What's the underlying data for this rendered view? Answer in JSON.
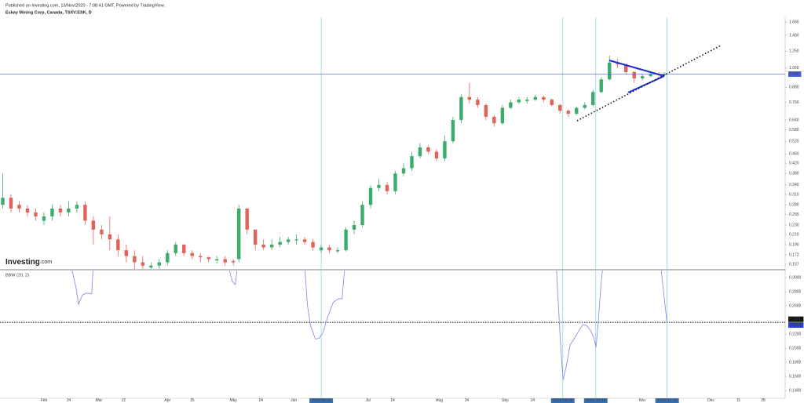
{
  "header": {
    "published": "Published on Investing.com, 13/Nov/2020 - 7:08:41 GMT, Powered by TradingView.",
    "symbol": "Eskay Mining Corp, Canada, TSXV:ESK, D",
    "watermark": "Investing",
    "watermark_suffix": ".com"
  },
  "chart_data": [
    {
      "type": "candlestick",
      "log_scale": true,
      "up_color": "#3dab6b",
      "down_color": "#e0625a",
      "xlim": [
        0,
        286
      ],
      "ylim": [
        0.15,
        1.74
      ],
      "xticks": [
        {
          "value": 16,
          "label": "Feb"
        },
        {
          "value": 25,
          "label": "14"
        },
        {
          "value": 36,
          "label": "Mar"
        },
        {
          "value": 45,
          "label": "12"
        },
        {
          "value": 61,
          "label": "Apr"
        },
        {
          "value": 70,
          "label": "15"
        },
        {
          "value": 85,
          "label": "May"
        },
        {
          "value": 95,
          "label": "14"
        },
        {
          "value": 107,
          "label": "Jun"
        },
        {
          "value": 117,
          "label": "2020-06-11",
          "highlight": true
        },
        {
          "value": 134,
          "label": "Jul"
        },
        {
          "value": 143,
          "label": "14"
        },
        {
          "value": 160,
          "label": "Aug"
        },
        {
          "value": 170,
          "label": "14"
        },
        {
          "value": 184,
          "label": "Sep"
        },
        {
          "value": 194,
          "label": "14"
        },
        {
          "value": 205,
          "label": "2020-09-28",
          "highlight": true
        },
        {
          "value": 217,
          "label": "2020-10-13",
          "highlight": true
        },
        {
          "value": 234,
          "label": "Nov"
        },
        {
          "value": 243,
          "label": "2020-11-12",
          "highlight": true
        },
        {
          "value": 259,
          "label": "Dec"
        },
        {
          "value": 269,
          "label": "11"
        },
        {
          "value": 278,
          "label": "28"
        }
      ],
      "yticks": [
        {
          "value": 1.66,
          "label": "1.660"
        },
        {
          "value": 1.46,
          "label": "1.460"
        },
        {
          "value": 1.25,
          "label": "1.250"
        },
        {
          "value": 1.06,
          "label": "1.060"
        },
        {
          "value": 0.88,
          "label": "0.880"
        },
        {
          "value": 0.76,
          "label": "0.760"
        },
        {
          "value": 0.64,
          "label": "0.640"
        },
        {
          "value": 0.58,
          "label": "0.580"
        },
        {
          "value": 0.52,
          "label": "0.520"
        },
        {
          "value": 0.46,
          "label": "0.460"
        },
        {
          "value": 0.42,
          "label": "0.420"
        },
        {
          "value": 0.38,
          "label": "0.380"
        },
        {
          "value": 0.34,
          "label": "0.340"
        },
        {
          "value": 0.31,
          "label": "0.310"
        },
        {
          "value": 0.28,
          "label": "0.280"
        },
        {
          "value": 0.255,
          "label": "0.255"
        },
        {
          "value": 0.23,
          "label": "0.230"
        },
        {
          "value": 0.21,
          "label": "0.210"
        },
        {
          "value": 0.19,
          "label": "0.190"
        },
        {
          "value": 0.172,
          "label": "0.172"
        },
        {
          "value": 0.157,
          "label": "0.157"
        }
      ],
      "price_line": {
        "value": 1.0,
        "label": "1.000",
        "color": "#4a5fd6"
      },
      "candles": {
        "x": [
          1,
          4,
          7,
          10,
          13,
          16,
          19,
          22,
          25,
          28,
          31,
          34,
          37,
          40,
          43,
          46,
          49,
          52,
          55,
          58,
          61,
          64,
          67,
          70,
          73,
          76,
          79,
          82,
          85,
          87,
          90,
          93,
          96,
          99,
          102,
          105,
          108,
          111,
          114,
          117,
          120,
          123,
          126,
          129,
          132,
          135,
          138,
          141,
          144,
          147,
          150,
          153,
          156,
          159,
          162,
          165,
          168,
          171,
          174,
          177,
          180,
          183,
          186,
          189,
          192,
          195,
          198,
          201,
          204,
          207,
          210,
          213,
          216,
          219,
          222,
          225,
          228,
          231,
          234,
          237,
          240,
          242
        ],
        "open": [
          0.28,
          0.3,
          0.28,
          0.27,
          0.26,
          0.24,
          0.25,
          0.27,
          0.26,
          0.27,
          0.28,
          0.24,
          0.22,
          0.21,
          0.2,
          0.18,
          0.17,
          0.16,
          0.152,
          0.155,
          0.16,
          0.175,
          0.19,
          0.175,
          0.17,
          0.168,
          0.163,
          0.165,
          0.162,
          0.165,
          0.27,
          0.22,
          0.19,
          0.185,
          0.19,
          0.195,
          0.198,
          0.2,
          0.195,
          0.18,
          0.185,
          0.178,
          0.18,
          0.22,
          0.23,
          0.28,
          0.33,
          0.34,
          0.32,
          0.38,
          0.4,
          0.45,
          0.49,
          0.47,
          0.44,
          0.52,
          0.64,
          0.8,
          0.78,
          0.74,
          0.66,
          0.62,
          0.72,
          0.76,
          0.77,
          0.78,
          0.8,
          0.78,
          0.74,
          0.7,
          0.68,
          0.72,
          0.74,
          0.84,
          0.95,
          1.12,
          1.1,
          1.02,
          0.96,
          0.98,
          1.0,
          0.99
        ],
        "high": [
          0.38,
          0.31,
          0.29,
          0.28,
          0.27,
          0.26,
          0.28,
          0.28,
          0.29,
          0.29,
          0.29,
          0.25,
          0.23,
          0.25,
          0.21,
          0.19,
          0.18,
          0.17,
          0.16,
          0.165,
          0.18,
          0.195,
          0.19,
          0.18,
          0.175,
          0.17,
          0.17,
          0.17,
          0.165,
          0.28,
          0.27,
          0.22,
          0.2,
          0.2,
          0.205,
          0.205,
          0.21,
          0.205,
          0.2,
          0.19,
          0.19,
          0.185,
          0.225,
          0.24,
          0.29,
          0.34,
          0.36,
          0.35,
          0.39,
          0.42,
          0.47,
          0.51,
          0.5,
          0.48,
          0.55,
          0.66,
          0.82,
          0.92,
          0.8,
          0.75,
          0.67,
          0.74,
          0.78,
          0.8,
          0.8,
          0.82,
          0.81,
          0.79,
          0.75,
          0.71,
          0.73,
          0.76,
          0.86,
          0.97,
          1.2,
          1.16,
          1.11,
          1.03,
          1.0,
          1.03,
          1.02,
          1.02
        ],
        "low": [
          0.27,
          0.26,
          0.26,
          0.25,
          0.24,
          0.23,
          0.24,
          0.25,
          0.25,
          0.26,
          0.23,
          0.19,
          0.2,
          0.18,
          0.17,
          0.16,
          0.15,
          0.15,
          0.15,
          0.15,
          0.155,
          0.17,
          0.17,
          0.165,
          0.16,
          0.16,
          0.158,
          0.155,
          0.155,
          0.16,
          0.21,
          0.18,
          0.18,
          0.18,
          0.185,
          0.19,
          0.19,
          0.19,
          0.18,
          0.175,
          0.175,
          0.175,
          0.178,
          0.21,
          0.225,
          0.27,
          0.32,
          0.31,
          0.31,
          0.37,
          0.39,
          0.44,
          0.46,
          0.43,
          0.43,
          0.51,
          0.62,
          0.75,
          0.72,
          0.64,
          0.6,
          0.61,
          0.71,
          0.75,
          0.75,
          0.77,
          0.76,
          0.73,
          0.68,
          0.66,
          0.67,
          0.71,
          0.73,
          0.83,
          0.94,
          1.06,
          1.0,
          0.92,
          0.94,
          0.97,
          0.97,
          0.98
        ],
        "close": [
          0.3,
          0.27,
          0.27,
          0.26,
          0.25,
          0.25,
          0.27,
          0.26,
          0.27,
          0.28,
          0.24,
          0.22,
          0.21,
          0.2,
          0.18,
          0.17,
          0.16,
          0.155,
          0.155,
          0.16,
          0.175,
          0.19,
          0.175,
          0.17,
          0.168,
          0.165,
          0.165,
          0.16,
          0.16,
          0.27,
          0.22,
          0.19,
          0.185,
          0.19,
          0.195,
          0.2,
          0.2,
          0.195,
          0.185,
          0.185,
          0.18,
          0.18,
          0.22,
          0.23,
          0.28,
          0.33,
          0.34,
          0.32,
          0.38,
          0.4,
          0.45,
          0.49,
          0.47,
          0.44,
          0.52,
          0.64,
          0.8,
          0.78,
          0.74,
          0.66,
          0.62,
          0.72,
          0.76,
          0.78,
          0.78,
          0.8,
          0.78,
          0.74,
          0.7,
          0.68,
          0.72,
          0.74,
          0.84,
          0.95,
          1.12,
          1.1,
          1.02,
          0.96,
          0.98,
          1.0,
          0.99,
          1.0
        ]
      }
    },
    {
      "type": "line",
      "title": "BBW (20, 2)",
      "xlim": [
        0,
        286
      ],
      "ylim": [
        0.129,
        0.31
      ],
      "yticks": [
        {
          "value": 0.3,
          "label": "0.3000"
        },
        {
          "value": 0.28,
          "label": "0.2800"
        },
        {
          "value": 0.26,
          "label": "0.2600"
        },
        {
          "value": 0.22,
          "label": "0.2200"
        },
        {
          "value": 0.2,
          "label": "0.2000"
        },
        {
          "value": 0.18,
          "label": "0.1800"
        },
        {
          "value": 0.16,
          "label": "0.1600"
        },
        {
          "value": 0.14,
          "label": "0.1400"
        }
      ],
      "markers": [
        {
          "value": 0.2371,
          "label": "0.2371",
          "color": "#111111"
        },
        {
          "value": 0.2366,
          "label": "0.2366",
          "color": "#2b3bd6"
        }
      ],
      "series": [
        {
          "name": "BBW",
          "color": "#8e8ee8",
          "x": [
            25.7,
            27.7,
            28.6,
            30,
            31.4,
            33.4,
            34,
            40,
            82.9,
            84.6,
            85.7,
            86.6,
            95,
            110.9,
            112,
            113.1,
            114.9,
            116.3,
            117.7,
            119.4,
            121.4,
            123.4,
            124.6,
            125.7,
            150,
            202.6,
            203.4,
            204.3,
            205.1,
            206.3,
            207.7,
            209.4,
            210.9,
            212.3,
            213.7,
            215.1,
            216.3,
            217.1,
            218,
            218.9,
            219.7,
            230,
            240.6,
            241.7,
            242.9
          ],
          "values": [
            0.32,
            0.285,
            0.262,
            0.275,
            0.278,
            0.277,
            0.32,
            null,
            0.32,
            0.295,
            0.29,
            0.32,
            null,
            0.32,
            0.26,
            0.232,
            0.213,
            0.214,
            0.222,
            0.245,
            0.265,
            0.27,
            0.27,
            0.32,
            null,
            0.32,
            0.26,
            0.2,
            0.155,
            0.175,
            0.205,
            0.215,
            0.225,
            0.233,
            0.232,
            0.225,
            0.215,
            0.201,
            0.24,
            0.29,
            0.32,
            null,
            0.32,
            0.28,
            0.238
          ]
        }
      ]
    }
  ]
}
